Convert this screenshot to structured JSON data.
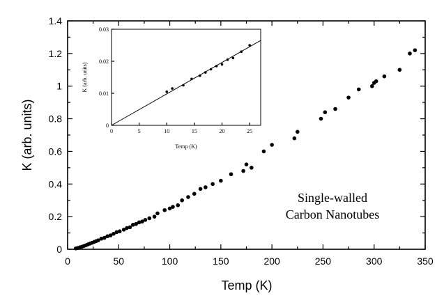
{
  "chart_data": [
    {
      "type": "scatter",
      "title": "",
      "xlabel": "Temp (K)",
      "ylabel": "K (arb. units)",
      "xlim": [
        0,
        350
      ],
      "ylim": [
        0,
        1.4
      ],
      "x_ticks": [
        0,
        50,
        100,
        150,
        200,
        250,
        300,
        350
      ],
      "x_tick_labels": [
        "0",
        "50",
        "100",
        "150",
        "200",
        "250",
        "300",
        "350"
      ],
      "y_ticks": [
        0,
        0.2,
        0.4,
        0.6,
        0.8,
        1,
        1.2,
        1.4
      ],
      "y_tick_labels": [
        "0",
        "0.2",
        "0.4",
        "0.6",
        "0.8",
        "1",
        "1.2",
        "1.4"
      ],
      "annotation": [
        "Single-walled",
        "Carbon Nanotubes"
      ],
      "series": [
        {
          "x": [
            8,
            10,
            12,
            14,
            16,
            18,
            20,
            22,
            24,
            26,
            28,
            30,
            33,
            36,
            39,
            42,
            45,
            48,
            51,
            55,
            58,
            61,
            64,
            67,
            70,
            73,
            76,
            80,
            85,
            88,
            95,
            100,
            103,
            108,
            112,
            118,
            124,
            130,
            135,
            142,
            150,
            160,
            172,
            175,
            180,
            192,
            200,
            222,
            225,
            248,
            252,
            262,
            275,
            285,
            298,
            300,
            302,
            310,
            325,
            335,
            340
          ],
          "y": [
            0.005,
            0.008,
            0.012,
            0.016,
            0.02,
            0.025,
            0.03,
            0.035,
            0.04,
            0.045,
            0.05,
            0.055,
            0.065,
            0.07,
            0.08,
            0.085,
            0.095,
            0.105,
            0.11,
            0.12,
            0.13,
            0.135,
            0.15,
            0.155,
            0.165,
            0.17,
            0.18,
            0.19,
            0.2,
            0.22,
            0.24,
            0.25,
            0.26,
            0.27,
            0.3,
            0.32,
            0.34,
            0.37,
            0.38,
            0.4,
            0.42,
            0.46,
            0.48,
            0.52,
            0.5,
            0.6,
            0.64,
            0.68,
            0.72,
            0.8,
            0.84,
            0.86,
            0.93,
            0.98,
            1.0,
            1.02,
            1.03,
            1.06,
            1.1,
            1.2,
            1.22
          ]
        }
      ]
    },
    {
      "type": "scatter",
      "title": "",
      "xlabel": "Temp (K)",
      "ylabel": "K (arb. units)",
      "xlim": [
        0,
        27
      ],
      "ylim": [
        0,
        0.03
      ],
      "x_ticks": [
        0,
        5,
        10,
        15,
        20,
        25
      ],
      "x_tick_labels": [
        "0",
        "5",
        "10",
        "15",
        "20",
        "25"
      ],
      "y_ticks": [
        0,
        0.01,
        0.02,
        0.03
      ],
      "y_tick_labels": [
        "0",
        "0.01",
        "0.02",
        "0.03"
      ],
      "fit_line": {
        "x": [
          0,
          27
        ],
        "y": [
          0,
          0.0265
        ]
      },
      "series": [
        {
          "x": [
            10,
            11,
            13,
            14.5,
            16,
            17,
            18,
            19,
            20,
            21,
            22,
            23.5,
            25
          ],
          "y": [
            0.0105,
            0.0115,
            0.0125,
            0.0145,
            0.0155,
            0.0165,
            0.0175,
            0.0185,
            0.019,
            0.0205,
            0.021,
            0.023,
            0.025
          ]
        }
      ]
    }
  ]
}
